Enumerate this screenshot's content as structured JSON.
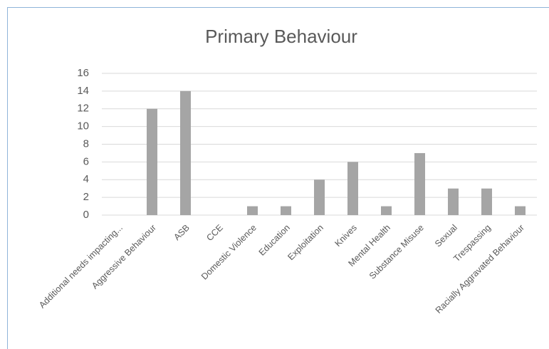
{
  "chart_data": {
    "type": "bar",
    "title": "Primary Behaviour",
    "categories": [
      "Additional needs impacting...",
      "Aggressive Behaviour",
      "ASB",
      "CCE",
      "Domestic Violence",
      "Education",
      "Exploitation",
      "Knives",
      "Mental Health",
      "Substance Misuse",
      "Sexual",
      "Trespassing",
      "Racially Aggravated Behaviour"
    ],
    "values": [
      0,
      12,
      14,
      0,
      1,
      1,
      4,
      6,
      1,
      7,
      3,
      3,
      1
    ],
    "color": "#a5a5a5",
    "ylim": [
      0,
      16
    ],
    "yticks": [
      0,
      2,
      4,
      6,
      8,
      10,
      12,
      14,
      16
    ],
    "grid": true
  }
}
